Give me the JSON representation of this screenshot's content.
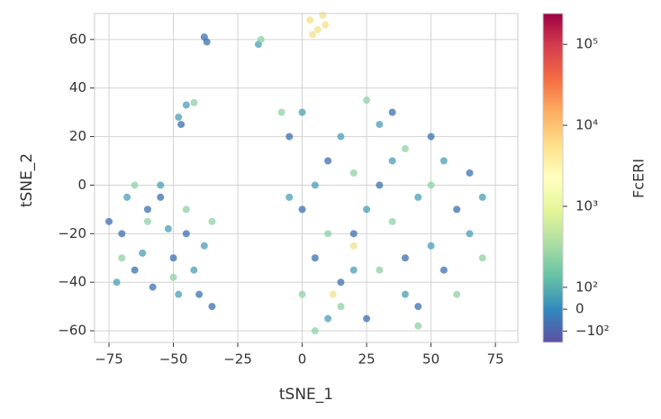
{
  "chart_data": {
    "type": "scatter",
    "xlabel": "tSNE_1",
    "ylabel": "tSNE_2",
    "xlim": [
      -80.6,
      83.7
    ],
    "ylim": [
      -64.8,
      70.7
    ],
    "xticks": [
      {
        "value": -75,
        "label": "−75"
      },
      {
        "value": -50,
        "label": "−50"
      },
      {
        "value": -25,
        "label": "−25"
      },
      0,
      25,
      50,
      75
    ],
    "yticks": [
      {
        "value": -60,
        "label": "−60"
      },
      {
        "value": -40,
        "label": "−40"
      },
      {
        "value": -20,
        "label": "−20"
      },
      0,
      20,
      40,
      60
    ],
    "grid": true,
    "series": [
      {
        "color": "#3b6fb0",
        "x": [
          -70,
          -60,
          -50,
          -40,
          -65,
          -55,
          -45,
          -35,
          -75,
          -58,
          0,
          10,
          20,
          30,
          40,
          50,
          60,
          45,
          15,
          35,
          -5,
          55,
          25,
          65,
          5,
          -38,
          -37,
          -47
        ],
        "y": [
          -20,
          -10,
          -30,
          -45,
          -35,
          -5,
          -20,
          -50,
          -15,
          -42,
          -10,
          10,
          -20,
          0,
          -30,
          20,
          -10,
          -50,
          -40,
          30,
          20,
          -35,
          -55,
          5,
          -30,
          61,
          59,
          25
        ]
      },
      {
        "color": "#4a9db5",
        "x": [
          -68,
          -52,
          -42,
          -62,
          -48,
          -72,
          -38,
          -55,
          5,
          15,
          25,
          35,
          45,
          55,
          65,
          20,
          40,
          -5,
          10,
          30,
          50,
          70,
          0,
          -17,
          -45,
          -48
        ],
        "y": [
          -5,
          -18,
          -35,
          -28,
          -45,
          -40,
          -25,
          0,
          0,
          20,
          -10,
          10,
          -5,
          10,
          -20,
          -35,
          -45,
          -5,
          -55,
          25,
          -25,
          -5,
          30,
          58,
          33,
          28
        ]
      },
      {
        "color": "#8fd0a4",
        "x": [
          -60,
          -45,
          -70,
          -50,
          -35,
          -65,
          10,
          20,
          30,
          40,
          0,
          15,
          50,
          60,
          25,
          -8,
          45,
          35,
          70,
          5,
          -42,
          -16
        ],
        "y": [
          -15,
          -10,
          -30,
          -38,
          -15,
          0,
          -20,
          5,
          -35,
          15,
          -45,
          -50,
          0,
          -45,
          35,
          30,
          -58,
          -15,
          -30,
          -60,
          34,
          60
        ]
      },
      {
        "color": "#f3e08a",
        "x": [
          3,
          6,
          9,
          4,
          8,
          20,
          12
        ],
        "y": [
          68,
          64,
          66,
          62,
          70,
          -25,
          -45
        ]
      }
    ],
    "colorbar": {
      "label": "FcERI",
      "lim": [
        -138,
        240000
      ],
      "colormap": [
        "#5e4fa2",
        "#3288bd",
        "#66c2a5",
        "#abdda4",
        "#e6f598",
        "#ffffbf",
        "#fee08b",
        "#fdae61",
        "#f46d43",
        "#d53e4f",
        "#9e0142"
      ],
      "ticks": [
        {
          "value": -100,
          "label": "−10²"
        },
        0,
        {
          "value": 100,
          "label": "10²"
        },
        {
          "value": 1000,
          "label": "10³"
        },
        {
          "value": 10000,
          "label": "10⁴"
        },
        {
          "value": 100000,
          "label": "10⁵"
        }
      ]
    }
  }
}
